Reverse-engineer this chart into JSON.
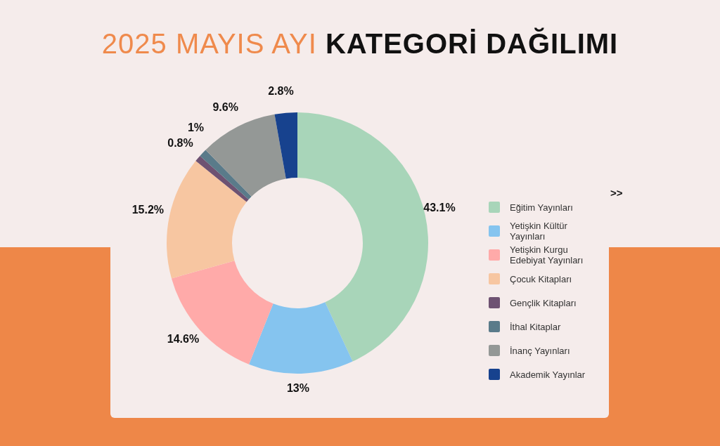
{
  "chart_data": {
    "type": "donut",
    "title": "2025 MAYIS AYI KATEGORİ DAĞILIMI",
    "categories": [
      "Eğitim Yayınları",
      "Yetişkin Kültür Yayınları",
      "Yetişkin Kurgu Edebiyat Yayınları",
      "Çocuk Kitapları",
      "Gençlik Kitapları",
      "İthal Kitaplar",
      "İnanç Yayınları",
      "Akademik Yayınlar"
    ],
    "values": [
      43.1,
      13,
      14.6,
      15.2,
      0.8,
      1,
      9.6,
      2.8
    ],
    "value_labels": [
      "43.1%",
      "13%",
      "14.6%",
      "15.2%",
      "0.8%",
      "1%",
      "9.6%",
      "2.8%"
    ],
    "colors": [
      "#a8d5b9",
      "#85c4ef",
      "#ffaaa9",
      "#f7c6a1",
      "#6e5272",
      "#5a7b8a",
      "#949896",
      "#17428e"
    ],
    "legend": "right",
    "annotations": [
      ">>"
    ]
  }
}
